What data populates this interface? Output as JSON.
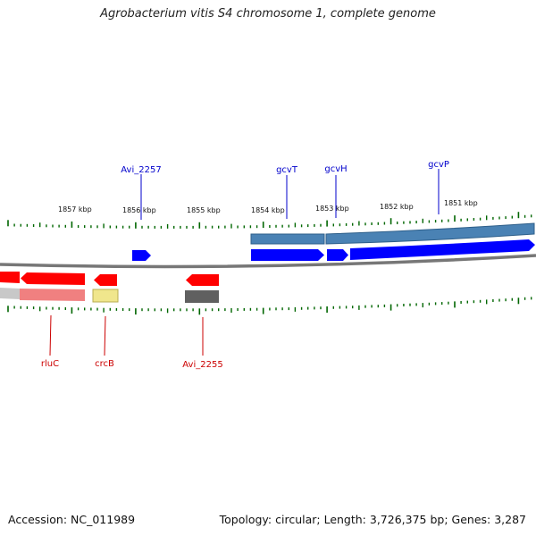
{
  "title": "Agrobacterium vitis S4 chromosome 1, complete genome",
  "accession_text": "Accession: NC_011989",
  "summary_text": "Topology: circular; Length: 3,726,375 bp; Genes: 3,287",
  "colors": {
    "forward_gene": "#0000ff",
    "reverse_gene": "#ff0000",
    "forward_label": "#0000cc",
    "reverse_label": "#cc0000",
    "tick": "#006600",
    "backbone": "#777777",
    "feature_blue": "#4a82b4",
    "feature_pink": "#f08080",
    "feature_yellow": "#f0e68c",
    "feature_gray": "#606060"
  },
  "scale_labels": [
    "1857 kbp",
    "1856 kbp",
    "1855 kbp",
    "1854 kbp",
    "1853 kbp",
    "1852 kbp",
    "1851 kbp"
  ],
  "gene_labels": {
    "forward": [
      "Avi_2257",
      "gcvT",
      "gcvH",
      "gcvP"
    ],
    "reverse": [
      "rluC",
      "crcB",
      "Avi_2255"
    ]
  }
}
